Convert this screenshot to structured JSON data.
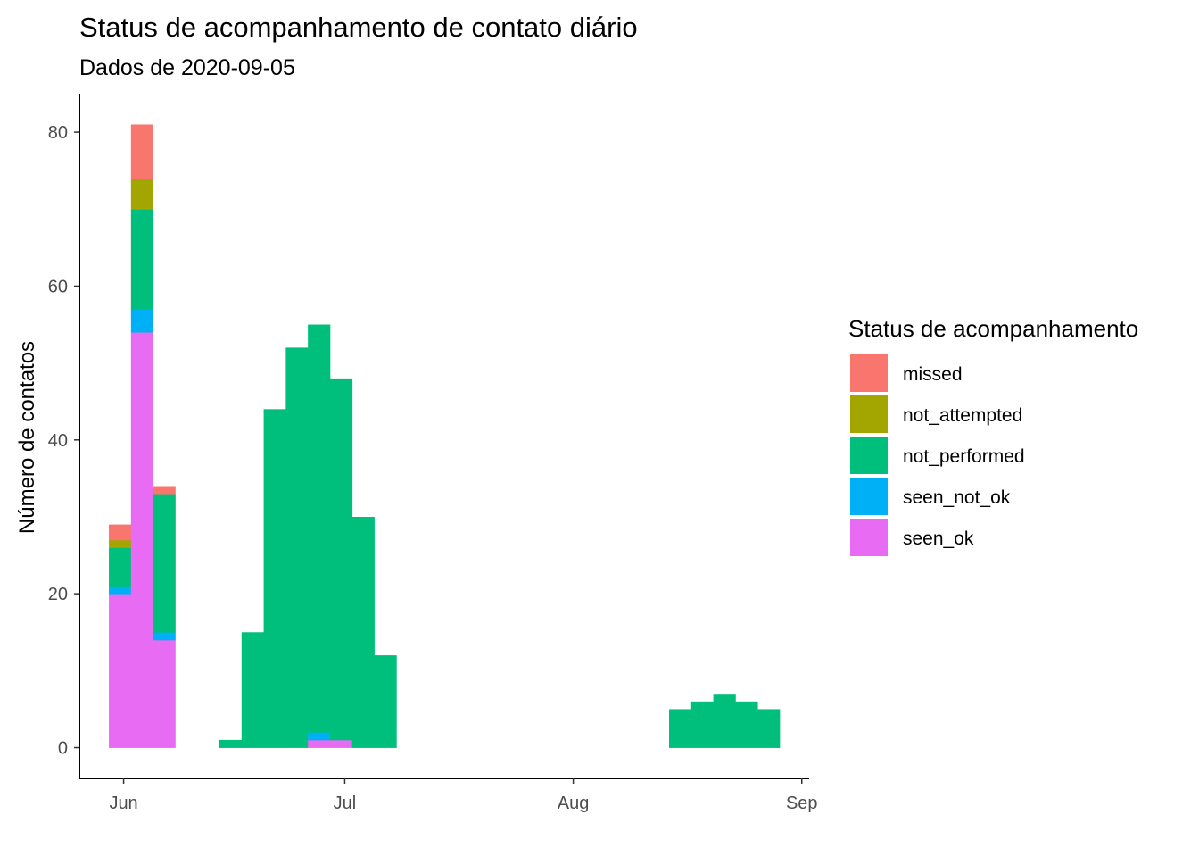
{
  "chart_data": {
    "type": "bar",
    "stacked": true,
    "title": "Status de acompanhamento de contato diário",
    "subtitle": "Dados de 2020-09-05",
    "xlabel": "",
    "ylabel": "Número de contatos",
    "x_ticks": [
      {
        "date": "2020-06-01",
        "label": "Jun"
      },
      {
        "date": "2020-07-01",
        "label": "Jul"
      },
      {
        "date": "2020-08-01",
        "label": "Aug"
      },
      {
        "date": "2020-09-01",
        "label": "Sep"
      }
    ],
    "y_ticks": [
      0,
      20,
      40,
      60,
      80
    ],
    "xlim": [
      "2020-05-26",
      "2020-09-02"
    ],
    "ylim": [
      -4,
      85
    ],
    "bin_width_days": 3,
    "bins": [
      "2020-05-30",
      "2020-06-02",
      "2020-06-05",
      "2020-06-08",
      "2020-06-11",
      "2020-06-14",
      "2020-06-17",
      "2020-06-20",
      "2020-06-23",
      "2020-06-26",
      "2020-06-29",
      "2020-07-02",
      "2020-07-05",
      "2020-08-14",
      "2020-08-17",
      "2020-08-20",
      "2020-08-23",
      "2020-08-26"
    ],
    "series": [
      {
        "name": "seen_ok",
        "color": "#E76BF3",
        "values": [
          20,
          54,
          14,
          0,
          0,
          0,
          0,
          0,
          0,
          1,
          1,
          0,
          0,
          0,
          0,
          0,
          0,
          0
        ]
      },
      {
        "name": "seen_not_ok",
        "color": "#00B0F6",
        "values": [
          1,
          3,
          1,
          0,
          0,
          0,
          0,
          0,
          0,
          1,
          0,
          0,
          0,
          0,
          0,
          0,
          0,
          0
        ]
      },
      {
        "name": "not_performed",
        "color": "#00BF7D",
        "values": [
          5,
          13,
          18,
          0,
          0,
          1,
          15,
          44,
          52,
          53,
          47,
          30,
          12,
          5,
          6,
          7,
          6,
          5
        ]
      },
      {
        "name": "not_attempted",
        "color": "#A3A500",
        "values": [
          1,
          4,
          0,
          0,
          0,
          0,
          0,
          0,
          0,
          0,
          0,
          0,
          0,
          0,
          0,
          0,
          0,
          0
        ]
      },
      {
        "name": "missed",
        "color": "#F8766D",
        "values": [
          2,
          7,
          1,
          0,
          0,
          0,
          0,
          0,
          0,
          0,
          0,
          0,
          0,
          0,
          0,
          0,
          0,
          0
        ]
      }
    ],
    "legend": {
      "title": "Status de acompanhamento",
      "position": "right",
      "entries": [
        "missed",
        "not_attempted",
        "not_performed",
        "seen_not_ok",
        "seen_ok"
      ]
    },
    "grid": false
  }
}
